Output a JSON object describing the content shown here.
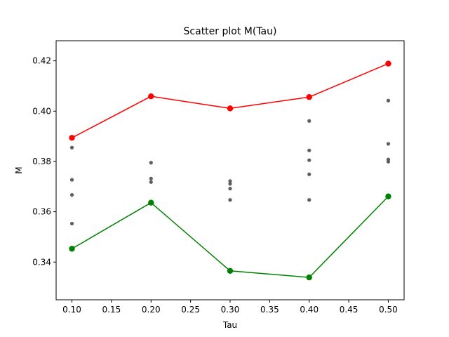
{
  "chart_data": {
    "type": "scatter",
    "title": "Scatter plot M(Tau)",
    "xlabel": "Tau",
    "ylabel": "M",
    "xlim": [
      0.08,
      0.52
    ],
    "ylim": [
      0.325,
      0.428
    ],
    "xticks": [
      0.1,
      0.15,
      0.2,
      0.25,
      0.3,
      0.35,
      0.4,
      0.45,
      0.5
    ],
    "xtick_labels": [
      "0.10",
      "0.15",
      "0.20",
      "0.25",
      "0.30",
      "0.35",
      "0.40",
      "0.45",
      "0.50"
    ],
    "yticks": [
      0.34,
      0.36,
      0.38,
      0.4,
      0.42
    ],
    "ytick_labels": [
      "0.34",
      "0.36",
      "0.38",
      "0.40",
      "0.42"
    ],
    "grid": false,
    "series": [
      {
        "kind": "scatter",
        "color": "#555555",
        "points": [
          {
            "x": 0.1,
            "y": 0.3855
          },
          {
            "x": 0.1,
            "y": 0.3727
          },
          {
            "x": 0.1,
            "y": 0.3667
          },
          {
            "x": 0.1,
            "y": 0.3553
          },
          {
            "x": 0.2,
            "y": 0.3795
          },
          {
            "x": 0.2,
            "y": 0.3732
          },
          {
            "x": 0.2,
            "y": 0.3718
          },
          {
            "x": 0.3,
            "y": 0.3722
          },
          {
            "x": 0.3,
            "y": 0.3711
          },
          {
            "x": 0.3,
            "y": 0.3692
          },
          {
            "x": 0.3,
            "y": 0.3647
          },
          {
            "x": 0.4,
            "y": 0.3961
          },
          {
            "x": 0.4,
            "y": 0.3844
          },
          {
            "x": 0.4,
            "y": 0.3805
          },
          {
            "x": 0.4,
            "y": 0.3749
          },
          {
            "x": 0.4,
            "y": 0.3647
          },
          {
            "x": 0.5,
            "y": 0.4042
          },
          {
            "x": 0.5,
            "y": 0.387
          },
          {
            "x": 0.5,
            "y": 0.3808
          },
          {
            "x": 0.5,
            "y": 0.3799
          }
        ]
      },
      {
        "kind": "line",
        "color": "#ff0000",
        "points": [
          {
            "x": 0.1,
            "y": 0.3894
          },
          {
            "x": 0.2,
            "y": 0.4059
          },
          {
            "x": 0.3,
            "y": 0.4011
          },
          {
            "x": 0.4,
            "y": 0.4056
          },
          {
            "x": 0.5,
            "y": 0.4189
          }
        ]
      },
      {
        "kind": "line",
        "color": "#008000",
        "points": [
          {
            "x": 0.1,
            "y": 0.3453
          },
          {
            "x": 0.2,
            "y": 0.3636
          },
          {
            "x": 0.3,
            "y": 0.3365
          },
          {
            "x": 0.4,
            "y": 0.3339
          },
          {
            "x": 0.5,
            "y": 0.3661
          }
        ]
      }
    ]
  }
}
